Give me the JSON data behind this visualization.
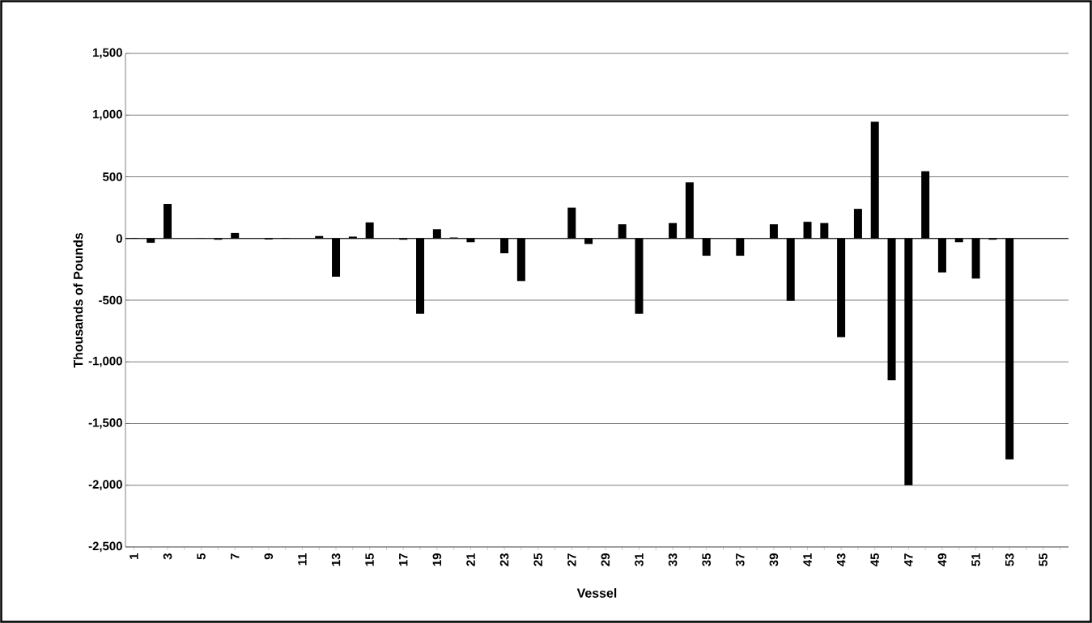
{
  "chart_data": {
    "type": "bar",
    "xlabel": "Vessel",
    "ylabel": "Thousands of Pounds",
    "categories": [
      "1",
      null,
      "3",
      null,
      "5",
      null,
      "7",
      null,
      "9",
      null,
      "11",
      null,
      "13",
      null,
      "15",
      null,
      "17",
      null,
      "19",
      null,
      "21",
      null,
      "23",
      null,
      "25",
      null,
      "27",
      null,
      "29",
      null,
      "31",
      null,
      "33",
      null,
      "35",
      null,
      "37",
      null,
      "39",
      null,
      "41",
      null,
      "43",
      null,
      "45",
      null,
      "47",
      null,
      "49",
      null,
      "51",
      null,
      "53",
      null,
      "55",
      null
    ],
    "values": [
      5,
      -35,
      280,
      0,
      3,
      -10,
      45,
      0,
      -8,
      5,
      0,
      20,
      -310,
      15,
      130,
      0,
      -10,
      -610,
      75,
      8,
      -30,
      0,
      -120,
      -345,
      0,
      0,
      250,
      -45,
      0,
      115,
      -610,
      0,
      125,
      455,
      -140,
      0,
      -140,
      0,
      115,
      -505,
      135,
      125,
      -800,
      240,
      945,
      -1150,
      -2000,
      545,
      -275,
      -30,
      -325,
      -10,
      -1790,
      0,
      0,
      0
    ],
    "color": "#000000",
    "ylim": [
      -2500,
      1500
    ],
    "yticks": [
      {
        "value": -2500,
        "label": "-2,500"
      },
      {
        "value": -2000,
        "label": "-2,000"
      },
      {
        "value": -1500,
        "label": "-1,500"
      },
      {
        "value": -1000,
        "label": "-1,000"
      },
      -500,
      0,
      500,
      {
        "value": 1000,
        "label": "1,000"
      },
      {
        "value": 1500,
        "label": "1,500"
      }
    ],
    "grid": "y"
  }
}
